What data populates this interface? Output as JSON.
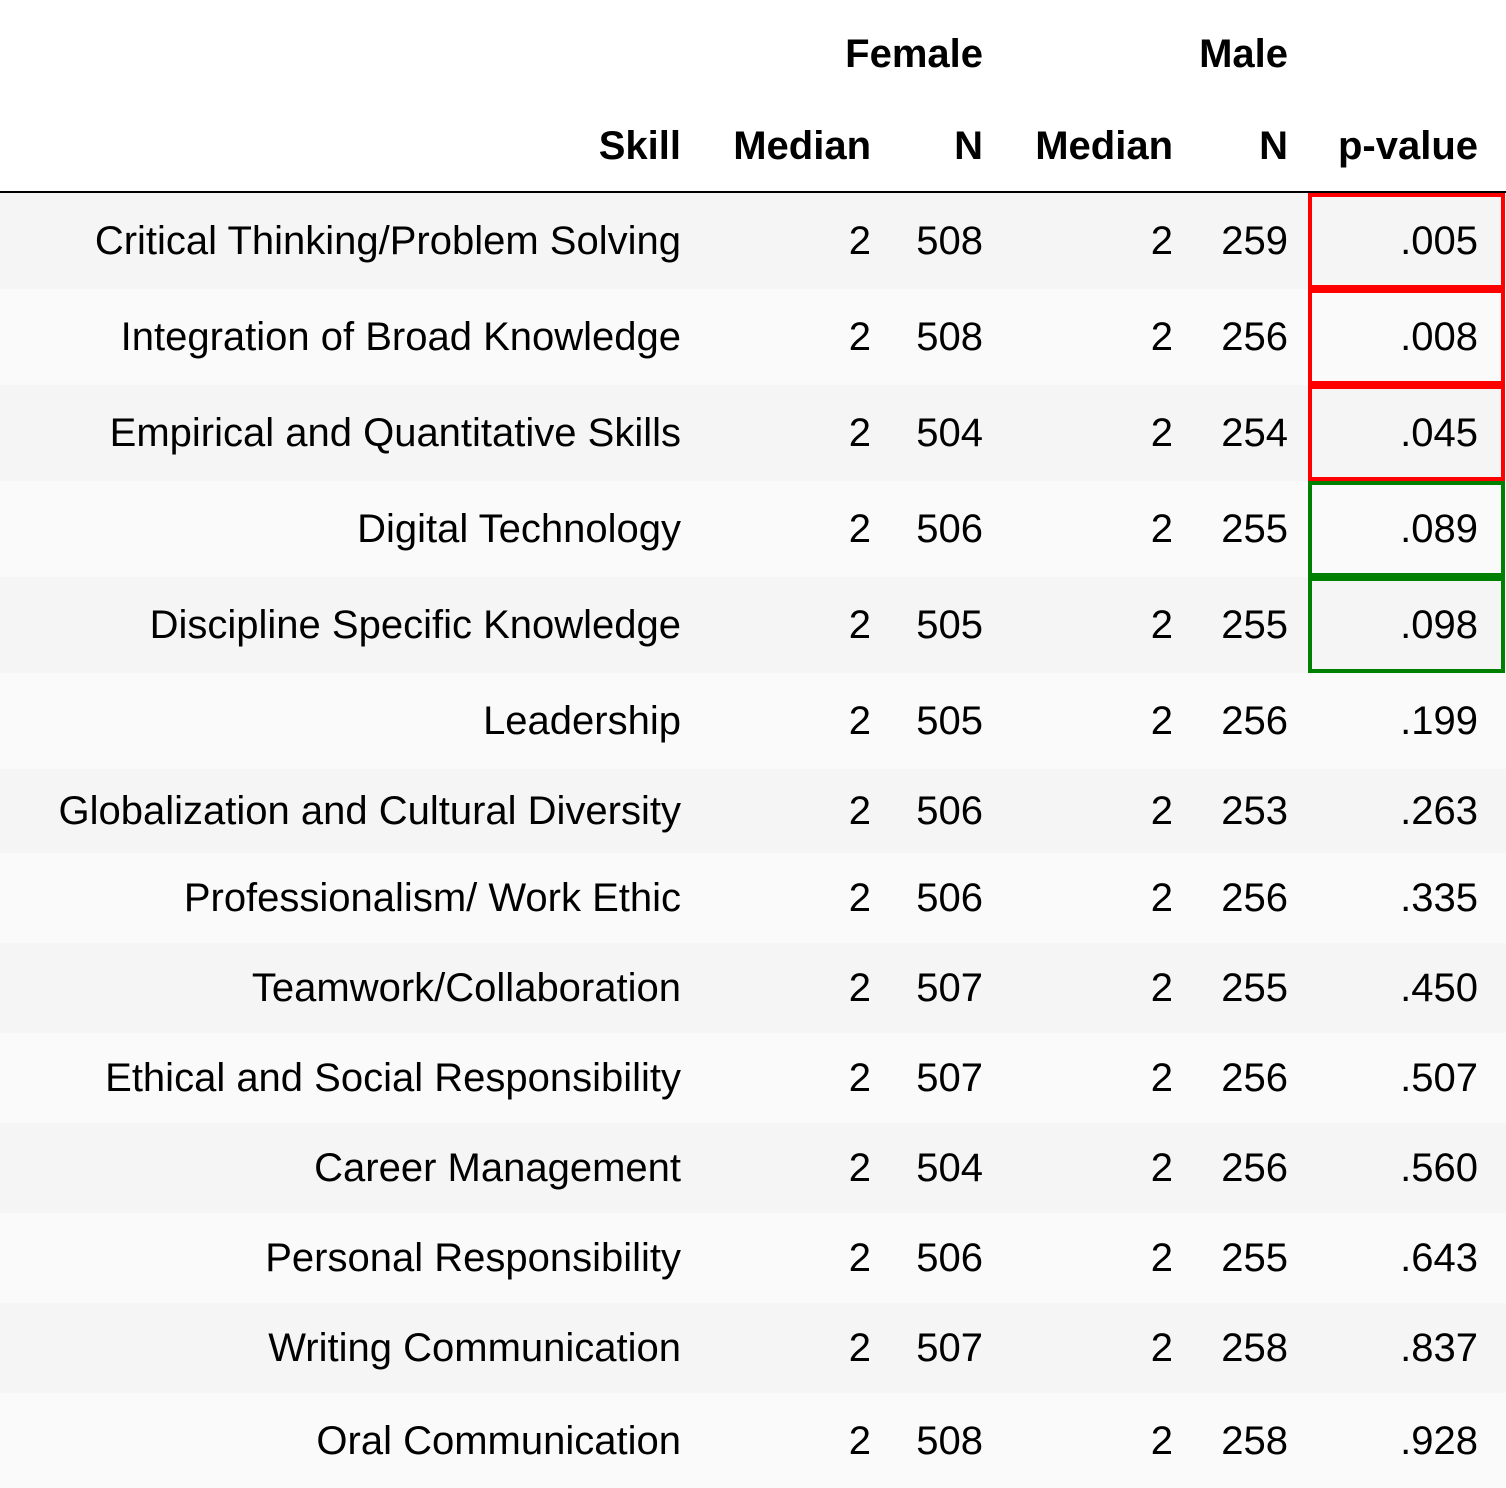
{
  "header": {
    "group_female": "Female",
    "group_male": "Male",
    "col_skill": "Skill",
    "col_female_median": "Median",
    "col_female_n": "N",
    "col_male_median": "Median",
    "col_male_n": "N",
    "col_pvalue": "p-value"
  },
  "rows": [
    {
      "skill": "Critical Thinking/Problem Solving",
      "f_median": "2",
      "f_n": "508",
      "m_median": "2",
      "m_n": "259",
      "p": ".005",
      "highlight": "red"
    },
    {
      "skill": "Integration of Broad Knowledge",
      "f_median": "2",
      "f_n": "508",
      "m_median": "2",
      "m_n": "256",
      "p": ".008",
      "highlight": "red"
    },
    {
      "skill": "Empirical and Quantitative Skills",
      "f_median": "2",
      "f_n": "504",
      "m_median": "2",
      "m_n": "254",
      "p": ".045",
      "highlight": "red"
    },
    {
      "skill": "Digital Technology",
      "f_median": "2",
      "f_n": "506",
      "m_median": "2",
      "m_n": "255",
      "p": ".089",
      "highlight": "green"
    },
    {
      "skill": "Discipline Specific Knowledge",
      "f_median": "2",
      "f_n": "505",
      "m_median": "2",
      "m_n": "255",
      "p": ".098",
      "highlight": "green"
    },
    {
      "skill": "Leadership",
      "f_median": "2",
      "f_n": "505",
      "m_median": "2",
      "m_n": "256",
      "p": ".199",
      "highlight": ""
    },
    {
      "skill": "Globalization and Cultural Diversity",
      "f_median": "2",
      "f_n": "506",
      "m_median": "2",
      "m_n": "253",
      "p": ".263",
      "highlight": ""
    },
    {
      "skill": "Professionalism/ Work Ethic",
      "f_median": "2",
      "f_n": "506",
      "m_median": "2",
      "m_n": "256",
      "p": ".335",
      "highlight": ""
    },
    {
      "skill": "Teamwork/Collaboration",
      "f_median": "2",
      "f_n": "507",
      "m_median": "2",
      "m_n": "255",
      "p": ".450",
      "highlight": ""
    },
    {
      "skill": "Ethical and Social Responsibility",
      "f_median": "2",
      "f_n": "507",
      "m_median": "2",
      "m_n": "256",
      "p": ".507",
      "highlight": ""
    },
    {
      "skill": "Career Management",
      "f_median": "2",
      "f_n": "504",
      "m_median": "2",
      "m_n": "256",
      "p": ".560",
      "highlight": ""
    },
    {
      "skill": "Personal Responsibility",
      "f_median": "2",
      "f_n": "506",
      "m_median": "2",
      "m_n": "255",
      "p": ".643",
      "highlight": ""
    },
    {
      "skill": "Writing Communication",
      "f_median": "2",
      "f_n": "507",
      "m_median": "2",
      "m_n": "258",
      "p": ".837",
      "highlight": ""
    },
    {
      "skill": "Oral Communication",
      "f_median": "2",
      "f_n": "508",
      "m_median": "2",
      "m_n": "258",
      "p": ".928",
      "highlight": ""
    }
  ],
  "colors": {
    "red": "#ff0000",
    "green": "#008000"
  }
}
